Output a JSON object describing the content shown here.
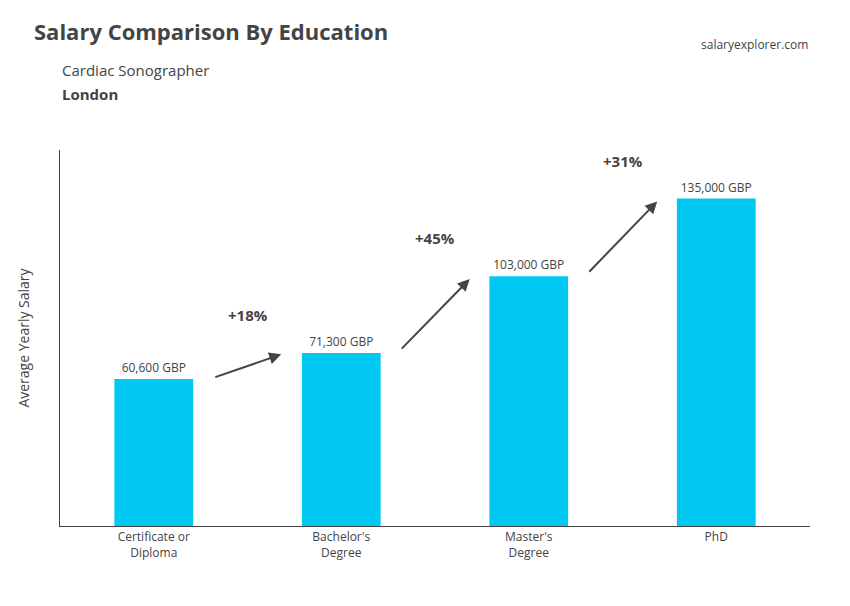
{
  "chart_data": {
    "type": "bar",
    "title": "Salary Comparison By Education",
    "subtitle": [
      "Cardiac Sonographer",
      "London"
    ],
    "categories": [
      "Certificate or\nDiploma",
      "Bachelor's\nDegree",
      "Master's\nDegree",
      "PhD"
    ],
    "values": [
      60600,
      71300,
      103000,
      135000
    ],
    "value_labels": [
      "60,600 GBP",
      "71,300 GBP",
      "103,000 GBP",
      "135,000 GBP"
    ],
    "data_labels": true,
    "annotations": [
      "+18%",
      "+45%",
      "+31%",
      "salaryexplorer.com"
    ],
    "color": "#00c8f0",
    "ylabel": "Average Yearly Salary",
    "ylim": [
      0,
      155000
    ],
    "tick_labels": "x",
    "grid": false
  }
}
